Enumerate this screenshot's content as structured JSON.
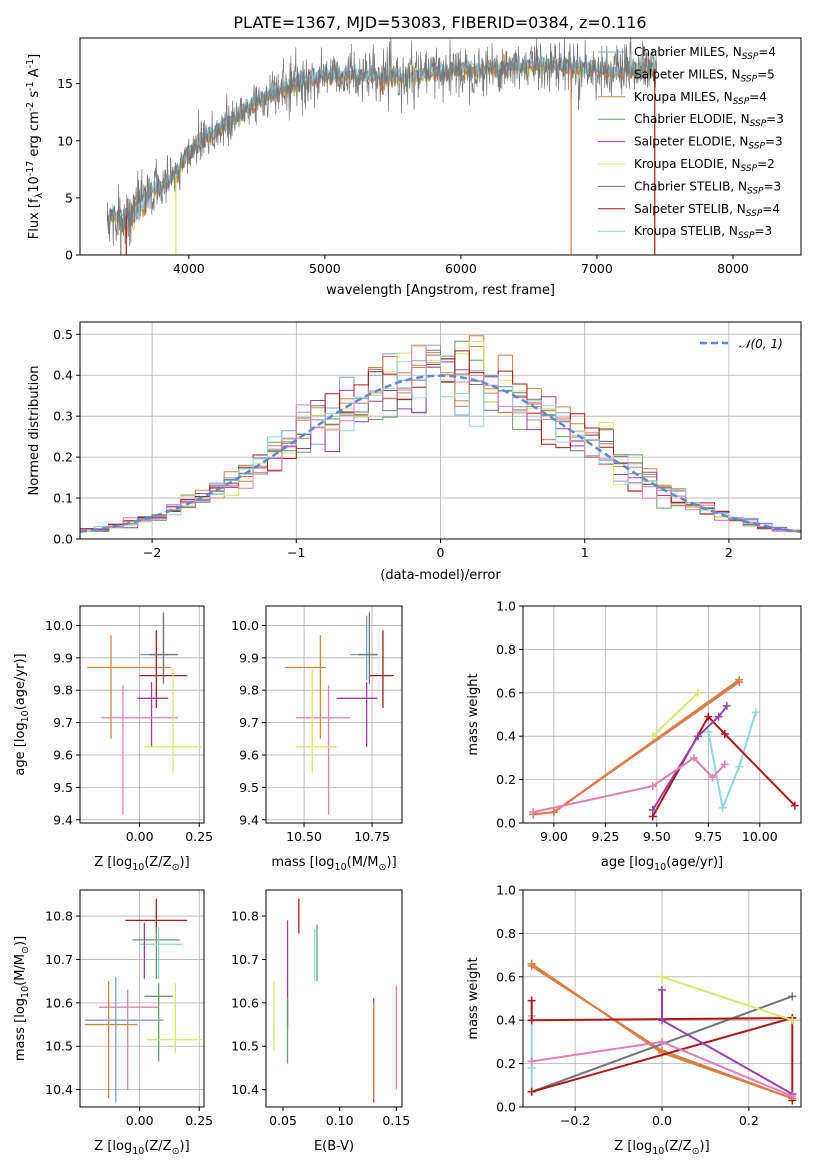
{
  "title": "PLATE=1367, MJD=53083, FIBERID=0384, z=0.116",
  "colors": {
    "chabrier_miles": "#7f9fd6",
    "salpeter_miles": "#e0784a",
    "kroupa_miles": "#c98a3e",
    "chabrier_elodie": "#6a9e6a",
    "salpeter_elodie": "#9a3fae",
    "kroupa_elodie": "#d7e86a",
    "chabrier_stelib": "#777777",
    "salpeter_stelib": "#b01818",
    "kroupa_stelib": "#8fd6dd",
    "pink": "#e27fb6",
    "normal": "#5b8bd6"
  },
  "chart_data": [
    {
      "type": "line",
      "panel": "spectrum",
      "xlabel": "wavelength [Angstrom, rest frame]",
      "ylabel": "Flux [f$_\\lambda$10$^{-17}$ erg cm$^{-2}$ s$^{-1}$ A$^{-1}$]",
      "xlim": [
        3200,
        8500
      ],
      "ylim": [
        0,
        19
      ],
      "xticks": [
        "4000",
        "5000",
        "6000",
        "7000",
        "8000"
      ],
      "yticks": [
        "0",
        "5",
        "10",
        "15"
      ],
      "legend_position": "top-right",
      "legend": [
        {
          "label": "Chabrier MILES, N",
          "sub": "SSP",
          "suffix": "=4",
          "color_key": "chabrier_miles"
        },
        {
          "label": "Salpeter MILES, N",
          "sub": "SSP",
          "suffix": "=5",
          "color_key": "salpeter_miles"
        },
        {
          "label": "Kroupa MILES, N",
          "sub": "SSP",
          "suffix": "=4",
          "color_key": "kroupa_miles"
        },
        {
          "label": "Chabrier ELODIE, N",
          "sub": "SSP",
          "suffix": "=3",
          "color_key": "chabrier_elodie"
        },
        {
          "label": "Salpeter ELODIE, N",
          "sub": "SSP",
          "suffix": "=3",
          "color_key": "salpeter_elodie"
        },
        {
          "label": "Kroupa ELODIE, N",
          "sub": "SSP",
          "suffix": "=2",
          "color_key": "kroupa_elodie"
        },
        {
          "label": "Chabrier STELIB, N",
          "sub": "SSP",
          "suffix": "=3",
          "color_key": "chabrier_stelib"
        },
        {
          "label": "Salpeter STELIB, N",
          "sub": "SSP",
          "suffix": "=4",
          "color_key": "salpeter_stelib"
        },
        {
          "label": "Kroupa STELIB, N",
          "sub": "SSP",
          "suffix": "=3",
          "color_key": "kroupa_stelib"
        }
      ],
      "continuum": {
        "x": [
          3400,
          3550,
          3700,
          3800,
          3900,
          4000,
          4100,
          4200,
          4300,
          4400,
          4500,
          4700,
          4800,
          4900,
          5000,
          5200,
          5400,
          5600,
          5800,
          6000,
          6200,
          6400,
          6600,
          6800,
          7000,
          7200,
          7400
        ],
        "y": [
          3.3,
          3.5,
          5.5,
          6.0,
          7.0,
          9.0,
          10.3,
          10.8,
          11.5,
          12.5,
          13.5,
          14.5,
          15.0,
          15.3,
          15.8,
          15.8,
          15.5,
          15.5,
          16.0,
          16.2,
          16.3,
          16.5,
          16.7,
          16.5,
          16.2,
          16.0,
          16.3
        ]
      }
    },
    {
      "type": "line",
      "panel": "residual-histogram",
      "xlabel": "(data-model)/error",
      "ylabel": "Normed distribution",
      "xlim": [
        -2.5,
        2.5
      ],
      "ylim": [
        0,
        0.53
      ],
      "xticks": [
        "−2",
        "−1",
        "0",
        "1",
        "2"
      ],
      "yticks": [
        "0.0",
        "0.1",
        "0.2",
        "0.3",
        "0.4",
        "0.5"
      ],
      "grid": true,
      "legend_position": "top-right",
      "legend": [
        {
          "label": "𝒩(0, 1)",
          "color_key": "normal"
        }
      ]
    },
    {
      "type": "scatter",
      "panel": "age-vs-Z",
      "xlabel": "Z [log$_{10}$(Z/Z$_\\odot$)]",
      "ylabel": "age  [log$_{10}$(age/yr)]",
      "xlim": [
        -0.25,
        0.27
      ],
      "ylim": [
        9.39,
        10.06
      ],
      "xticks": [
        "0.00",
        "0.25"
      ],
      "yticks": [
        "9.4",
        "9.5",
        "9.6",
        "9.7",
        "9.8",
        "9.9",
        "10.0"
      ],
      "grid": true,
      "points": [
        {
          "x": 0.1,
          "y": 9.91,
          "xerr": [
            0.1,
            0.02
          ],
          "yerr": [
            0.08,
            0.12
          ],
          "color_key": "chabrier_miles"
        },
        {
          "x": -0.12,
          "y": 9.87,
          "xerr": [
            0.1,
            0.25
          ],
          "yerr": [
            0.22,
            0.1
          ],
          "color_key": "kroupa_miles"
        },
        {
          "x": 0.05,
          "y": 9.775,
          "xerr": [
            0.06,
            0.07
          ],
          "yerr": [
            0.15,
            0.05
          ],
          "color_key": "salpeter_elodie"
        },
        {
          "x": 0.07,
          "y": 9.845,
          "xerr": [
            0.07,
            0.13
          ],
          "yerr": [
            0.1,
            0.14
          ],
          "color_key": "salpeter_stelib"
        },
        {
          "x": 0.1,
          "y": 9.91,
          "xerr": [
            0.06,
            0.06
          ],
          "yerr": [
            0.09,
            0.13
          ],
          "color_key": "chabrier_stelib"
        },
        {
          "x": -0.07,
          "y": 9.715,
          "xerr": [
            0.09,
            0.23
          ],
          "yerr": [
            0.3,
            0.1
          ],
          "color_key": "pink"
        },
        {
          "x": 0.14,
          "y": 9.625,
          "xerr": [
            0.12,
            0.12
          ],
          "yerr": [
            0.08,
            0.24
          ],
          "color_key": "kroupa_elodie"
        }
      ]
    },
    {
      "type": "scatter",
      "panel": "age-vs-mass",
      "xlabel": "mass [log$_{10}$(M/M$_\\odot$)]",
      "ylabel": "",
      "xlim": [
        10.36,
        10.86
      ],
      "ylim": [
        9.39,
        10.06
      ],
      "xticks": [
        "10.50",
        "10.75"
      ],
      "yticks": [
        "9.4",
        "9.5",
        "9.6",
        "9.7",
        "9.8",
        "9.9",
        "10.0"
      ],
      "grid": true,
      "points": [
        {
          "x": 10.73,
          "y": 9.91,
          "xerr": [
            0.06,
            0.04
          ],
          "yerr": [
            0.08,
            0.12
          ],
          "color_key": "chabrier_miles"
        },
        {
          "x": 10.56,
          "y": 9.87,
          "xerr": [
            0.13,
            0.02
          ],
          "yerr": [
            0.22,
            0.1
          ],
          "color_key": "kroupa_miles"
        },
        {
          "x": 10.73,
          "y": 9.775,
          "xerr": [
            0.11,
            0.04
          ],
          "yerr": [
            0.15,
            0.05
          ],
          "color_key": "salpeter_elodie"
        },
        {
          "x": 10.79,
          "y": 9.845,
          "xerr": [
            0.05,
            0.04
          ],
          "yerr": [
            0.1,
            0.14
          ],
          "color_key": "salpeter_stelib"
        },
        {
          "x": 10.74,
          "y": 9.91,
          "xerr": [
            0.04,
            0.03
          ],
          "yerr": [
            0.09,
            0.13
          ],
          "color_key": "chabrier_stelib"
        },
        {
          "x": 10.59,
          "y": 9.715,
          "xerr": [
            0.12,
            0.08
          ],
          "yerr": [
            0.3,
            0.1
          ],
          "color_key": "pink"
        },
        {
          "x": 10.53,
          "y": 9.625,
          "xerr": [
            0.06,
            0.09
          ],
          "yerr": [
            0.08,
            0.24
          ],
          "color_key": "kroupa_elodie"
        }
      ]
    },
    {
      "type": "line",
      "panel": "mass-weight-vs-age",
      "xlabel": "age  [log$_{10}$(age/yr)]",
      "ylabel": "mass weight",
      "xlim": [
        8.85,
        10.2
      ],
      "ylim": [
        0,
        1.0
      ],
      "xticks": [
        "9.00",
        "9.25",
        "9.50",
        "9.75",
        "10.00"
      ],
      "yticks": [
        "0.0",
        "0.2",
        "0.4",
        "0.6",
        "0.8",
        "1.0"
      ],
      "grid": true,
      "series": [
        {
          "color_key": "kroupa_miles",
          "x": [
            8.9,
            9.0,
            9.9
          ],
          "y": [
            0.04,
            0.05,
            0.66
          ]
        },
        {
          "color_key": "salpeter_miles",
          "x": [
            8.9,
            9.0,
            9.9
          ],
          "y": [
            0.04,
            0.05,
            0.65
          ]
        },
        {
          "color_key": "kroupa_stelib",
          "x": [
            9.75,
            9.82,
            9.9,
            9.98
          ],
          "y": [
            0.42,
            0.07,
            0.26,
            0.51
          ]
        },
        {
          "color_key": "salpeter_stelib",
          "x": [
            9.48,
            9.75,
            9.83,
            10.17
          ],
          "y": [
            0.03,
            0.49,
            0.41,
            0.08
          ]
        },
        {
          "color_key": "salpeter_elodie",
          "x": [
            9.48,
            9.7,
            9.8,
            9.84
          ],
          "y": [
            0.06,
            0.4,
            0.49,
            0.54
          ]
        },
        {
          "color_key": "pink",
          "x": [
            8.9,
            9.48,
            9.68,
            9.77,
            9.83
          ],
          "y": [
            0.05,
            0.17,
            0.3,
            0.21,
            0.27
          ]
        },
        {
          "color_key": "kroupa_elodie",
          "x": [
            9.48,
            9.7
          ],
          "y": [
            0.4,
            0.6
          ]
        }
      ]
    },
    {
      "type": "scatter",
      "panel": "mass-vs-Z",
      "xlabel": "Z [log$_{10}$(Z/Z$_\\odot$)]",
      "ylabel": "mass [log$_{10}$(M/M$_\\odot$)]",
      "xlim": [
        -0.25,
        0.27
      ],
      "ylim": [
        10.36,
        10.86
      ],
      "xticks": [
        "0.00",
        "0.25"
      ],
      "yticks": [
        "10.4",
        "10.5",
        "10.6",
        "10.7",
        "10.8"
      ],
      "grid": true,
      "points": [
        {
          "x": 0.07,
          "y": 10.79,
          "xerr": [
            0.13,
            0.13
          ],
          "yerr": [
            0.03,
            0.05
          ],
          "color_key": "salpeter_stelib"
        },
        {
          "x": 0.07,
          "y": 10.745,
          "xerr": [
            0.1,
            0.1
          ],
          "yerr": [
            0.09,
            0.03
          ],
          "color_key": "chabrier_elodie"
        },
        {
          "x": 0.08,
          "y": 10.735,
          "xerr": [
            0.08,
            0.1
          ],
          "yerr": [
            0.08,
            0.04
          ],
          "color_key": "kroupa_stelib"
        },
        {
          "x": 0.02,
          "y": 10.735,
          "xerr": [
            0.0,
            0.0
          ],
          "yerr": [
            0.08,
            0.05
          ],
          "color_key": "salpeter_elodie"
        },
        {
          "x": 0.08,
          "y": 10.615,
          "xerr": [
            0.06,
            0.06
          ],
          "yerr": [
            0.15,
            0.03
          ],
          "color_key": "chabrier_elodie"
        },
        {
          "x": -0.05,
          "y": 10.59,
          "xerr": [
            0.12,
            0.13
          ],
          "yerr": [
            0.19,
            0.04
          ],
          "color_key": "pink"
        },
        {
          "x": -0.13,
          "y": 10.55,
          "xerr": [
            0.1,
            0.12
          ],
          "yerr": [
            0.17,
            0.1
          ],
          "color_key": "kroupa_miles"
        },
        {
          "x": -0.1,
          "y": 10.56,
          "xerr": [
            0.13,
            0.2
          ],
          "yerr": [
            0.19,
            0.1
          ],
          "color_key": "chabrier_miles"
        },
        {
          "x": 0.15,
          "y": 10.515,
          "xerr": [
            0.12,
            0.11
          ],
          "yerr": [
            0.03,
            0.13
          ],
          "color_key": "kroupa_elodie"
        }
      ]
    },
    {
      "type": "scatter",
      "panel": "mass-vs-EBV",
      "xlabel": "E(B-V)",
      "ylabel": "",
      "xlim": [
        0.035,
        0.155
      ],
      "ylim": [
        10.36,
        10.86
      ],
      "xticks": [
        "0.05",
        "0.10",
        "0.15"
      ],
      "yticks": [
        "10.4",
        "10.5",
        "10.6",
        "10.7",
        "10.8"
      ],
      "points": [
        {
          "x": 0.064,
          "y": 10.79,
          "yerr": [
            0.03,
            0.05
          ],
          "color_key": "salpeter_stelib"
        },
        {
          "x": 0.08,
          "y": 10.72,
          "yerr": [
            0.07,
            0.06
          ],
          "color_key": "chabrier_elodie"
        },
        {
          "x": 0.078,
          "y": 10.72,
          "yerr": [
            0.07,
            0.05
          ],
          "color_key": "kroupa_stelib"
        },
        {
          "x": 0.054,
          "y": 10.72,
          "yerr": [
            0.18,
            0.07
          ],
          "color_key": "salpeter_elodie"
        },
        {
          "x": 0.054,
          "y": 10.55,
          "yerr": [
            0.09,
            0.06
          ],
          "color_key": "chabrier_elodie"
        },
        {
          "x": 0.042,
          "y": 10.56,
          "yerr": [
            0.07,
            0.09
          ],
          "color_key": "kroupa_elodie"
        },
        {
          "x": 0.13,
          "y": 10.49,
          "yerr": [
            0.12,
            0.12
          ],
          "color_key": "salpeter_elodie"
        },
        {
          "x": 0.13,
          "y": 10.49,
          "yerr": [
            0.11,
            0.11
          ],
          "color_key": "kroupa_miles"
        },
        {
          "x": 0.15,
          "y": 10.52,
          "yerr": [
            0.12,
            0.12
          ],
          "color_key": "pink"
        }
      ]
    },
    {
      "type": "line",
      "panel": "mass-weight-vs-Z",
      "xlabel": "Z [log$_{10}$(Z/Z$_\\odot$)]",
      "ylabel": "mass weight",
      "xlim": [
        -0.32,
        0.32
      ],
      "ylim": [
        0,
        1.0
      ],
      "xticks": [
        "−0.2",
        "0.0",
        "0.2"
      ],
      "yticks": [
        "0.0",
        "0.2",
        "0.4",
        "0.6",
        "0.8",
        "1.0"
      ],
      "grid": true,
      "series": [
        {
          "color_key": "kroupa_miles",
          "x": [
            -0.3,
            0.0,
            0.3
          ],
          "y": [
            0.66,
            0.25,
            0.04
          ]
        },
        {
          "color_key": "salpeter_miles",
          "x": [
            -0.3,
            0.0,
            0.3
          ],
          "y": [
            0.65,
            0.26,
            0.04
          ]
        },
        {
          "color_key": "kroupa_stelib",
          "x": [
            -0.3,
            -0.3,
            -0.3,
            0.3
          ],
          "y": [
            0.42,
            0.18,
            0.07,
            0.51
          ]
        },
        {
          "color_key": "chabrier_stelib",
          "x": [
            -0.3,
            0.3
          ],
          "y": [
            0.07,
            0.51
          ]
        },
        {
          "color_key": "salpeter_stelib",
          "x": [
            -0.3,
            -0.3,
            0.3,
            0.3
          ],
          "y": [
            0.49,
            0.4,
            0.41,
            0.03
          ]
        },
        {
          "color_key": "salpeter_stelib",
          "x": [
            -0.3,
            0.3
          ],
          "y": [
            0.07,
            0.41
          ]
        },
        {
          "color_key": "salpeter_elodie",
          "x": [
            0.0,
            0.0,
            0.3
          ],
          "y": [
            0.54,
            0.4,
            0.06
          ]
        },
        {
          "color_key": "pink",
          "x": [
            -0.3,
            0.0,
            0.3
          ],
          "y": [
            0.21,
            0.3,
            0.05
          ]
        },
        {
          "color_key": "kroupa_elodie",
          "x": [
            0.0,
            0.3
          ],
          "y": [
            0.6,
            0.4
          ]
        }
      ]
    }
  ]
}
